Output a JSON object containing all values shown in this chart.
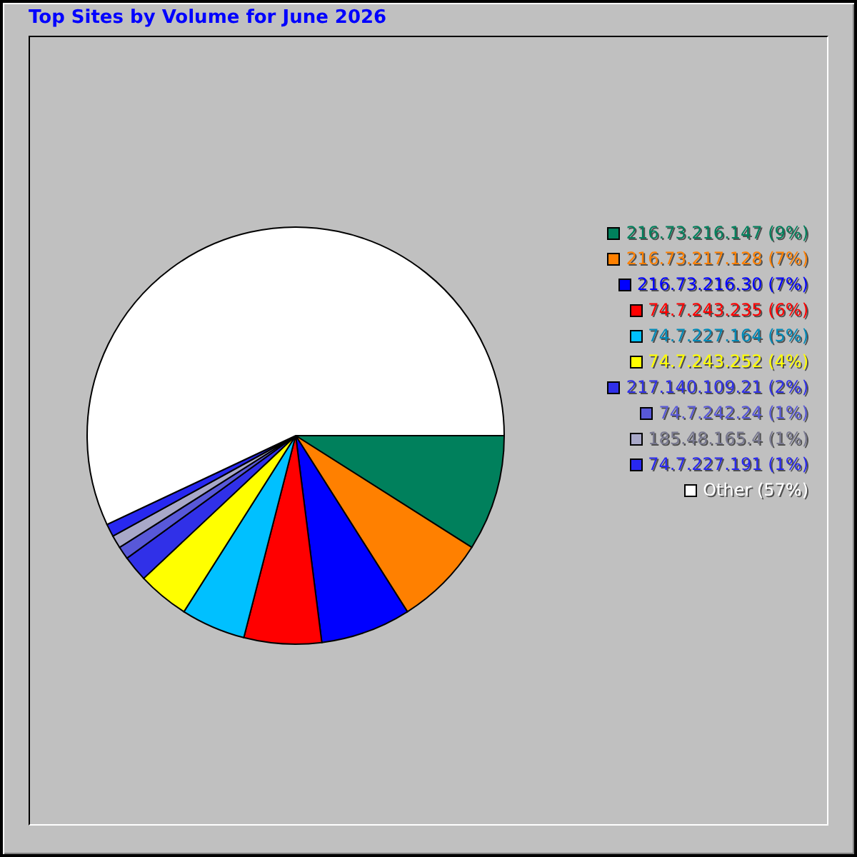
{
  "chart_data": {
    "type": "pie",
    "title": "Top Sites by Volume for June 2026",
    "categories": [
      "216.73.216.147",
      "216.73.217.128",
      "216.73.216.30",
      "74.7.243.235",
      "74.7.227.164",
      "74.7.243.252",
      "217.140.109.21",
      "74.7.242.24",
      "185.48.165.4",
      "74.7.227.191",
      "Other"
    ],
    "values": [
      9,
      7,
      7,
      6,
      5,
      4,
      2,
      1,
      1,
      1,
      57
    ],
    "value_labels": [
      "(9%)",
      "(7%)",
      "(7%)",
      "(6%)",
      "(5%)",
      "(4%)",
      "(2%)",
      "(1%)",
      "(1%)",
      "(1%)",
      "(57%)"
    ],
    "colors": [
      "#00805c",
      "#ff8000",
      "#0000ff",
      "#ff0000",
      "#00c0ff",
      "#ffff00",
      "#3030e8",
      "#5858d8",
      "#a8a8c8",
      "#2828f0",
      "#ffffff"
    ],
    "legend": "right"
  }
}
